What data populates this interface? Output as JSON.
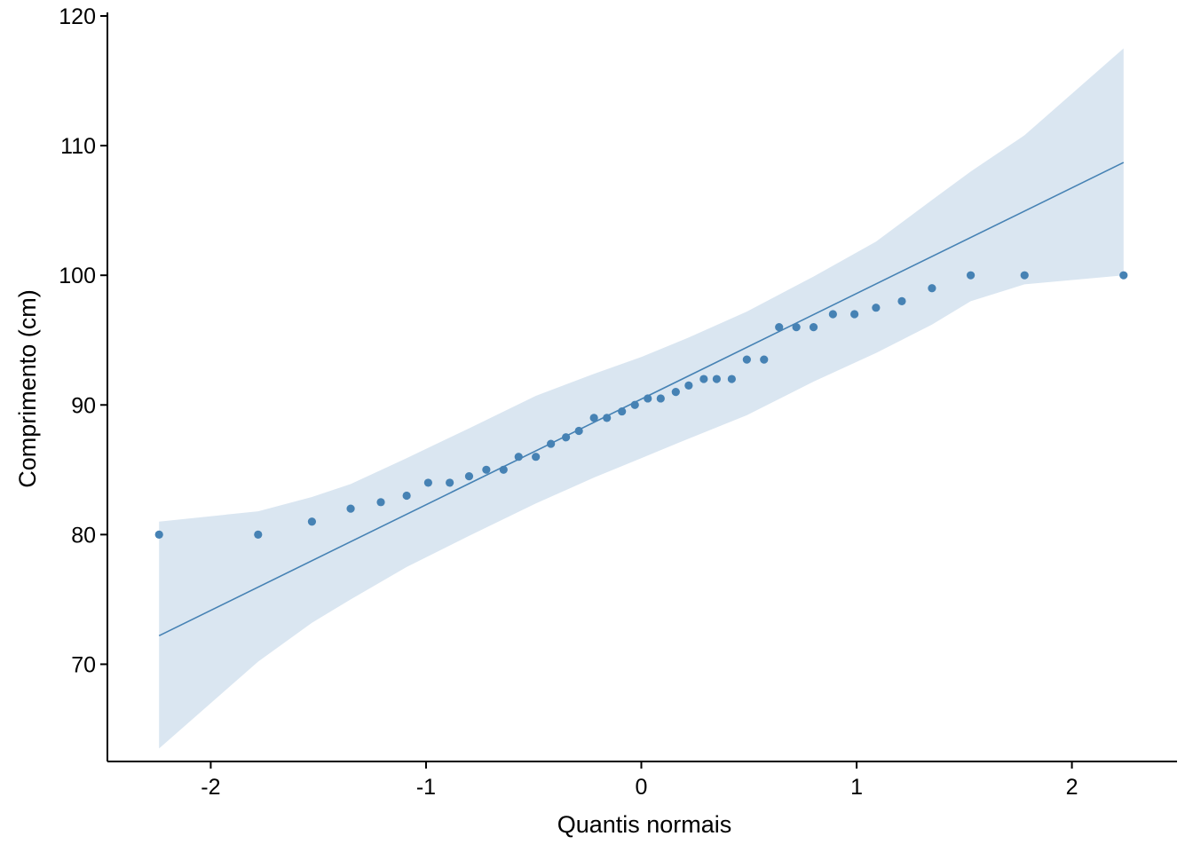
{
  "chart_data": {
    "type": "scatter",
    "title": "",
    "xlabel": "Quantis normais",
    "ylabel": "Comprimento (cm)",
    "xlim": [
      -2.48,
      2.48
    ],
    "ylim": [
      62.5,
      120
    ],
    "x_ticks": [
      -2,
      -1,
      0,
      1,
      2
    ],
    "y_ticks": [
      70,
      80,
      90,
      100,
      110,
      120
    ],
    "x_tick_labels": [
      "-2",
      "-1",
      "0",
      "1",
      "2"
    ],
    "y_tick_labels": [
      "70",
      "80",
      "90",
      "100",
      "110",
      "120"
    ],
    "grid": false,
    "legend": "none",
    "colors": {
      "points": "#4682B4",
      "line": "#4682B4",
      "band": "#DAE6F1"
    },
    "points": {
      "x": [
        -2.24,
        -1.78,
        -1.53,
        -1.35,
        -1.21,
        -1.09,
        -0.99,
        -0.89,
        -0.8,
        -0.72,
        -0.64,
        -0.57,
        -0.49,
        -0.42,
        -0.35,
        -0.29,
        -0.22,
        -0.16,
        -0.09,
        -0.03,
        0.03,
        0.09,
        0.16,
        0.22,
        0.29,
        0.35,
        0.42,
        0.49,
        0.57,
        0.64,
        0.72,
        0.8,
        0.89,
        0.99,
        1.09,
        1.21,
        1.35,
        1.53,
        1.78,
        2.24
      ],
      "y": [
        80,
        80,
        81,
        82,
        82.5,
        83,
        84,
        84,
        84.5,
        85,
        85,
        86,
        86,
        87,
        87.5,
        88,
        89,
        89,
        89.5,
        90,
        90.5,
        90.5,
        91,
        91.5,
        92,
        92,
        92,
        93.5,
        93.5,
        96,
        96,
        96,
        97,
        97,
        97.5,
        98,
        99,
        100,
        100,
        100
      ]
    },
    "reference_line": {
      "x": [
        -2.24,
        2.24
      ],
      "y": [
        72.2,
        108.7
      ]
    },
    "confidence_band": {
      "x": [
        -2.24,
        -1.78,
        -1.53,
        -1.35,
        -1.09,
        -0.8,
        -0.49,
        -0.22,
        0,
        0.22,
        0.49,
        0.8,
        1.09,
        1.35,
        1.53,
        1.78,
        2.24
      ],
      "upper": [
        81.0,
        81.8,
        82.9,
        83.9,
        85.9,
        88.2,
        90.7,
        92.4,
        93.7,
        95.2,
        97.2,
        99.9,
        102.6,
        105.8,
        108.0,
        110.8,
        117.5
      ],
      "lower": [
        63.5,
        70.2,
        73.2,
        75.0,
        77.5,
        79.9,
        82.4,
        84.4,
        85.9,
        87.4,
        89.2,
        91.8,
        94.0,
        96.2,
        98.0,
        99.3,
        100.0
      ]
    }
  }
}
